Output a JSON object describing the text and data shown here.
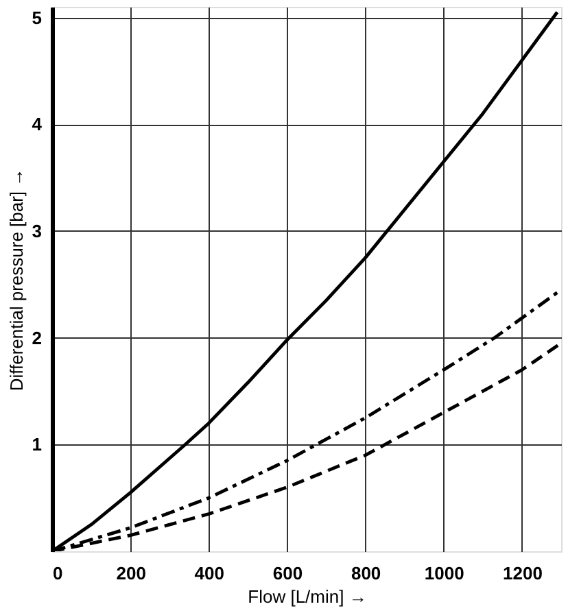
{
  "chart_data": {
    "type": "line",
    "xlabel": "Flow [L/min] →",
    "ylabel": "Differential pressure [bar] →",
    "xlim": [
      0,
      1300
    ],
    "ylim": [
      0,
      5.1
    ],
    "xticks": [
      0,
      200,
      400,
      600,
      800,
      1000,
      1200
    ],
    "yticks": [
      1,
      2,
      3,
      4,
      5
    ],
    "grid": true,
    "marker": "none",
    "series": [
      {
        "color": "#000000",
        "line_style": "solid",
        "x": [
          0,
          100,
          200,
          340,
          400,
          500,
          600,
          700,
          800,
          900,
          1000,
          1100,
          1200,
          1290
        ],
        "values": [
          0,
          0.25,
          0.55,
          1.0,
          1.2,
          1.58,
          1.98,
          2.35,
          2.75,
          3.2,
          3.65,
          4.1,
          4.6,
          5.05
        ]
      },
      {
        "color": "#000000",
        "line_style": "dashdot",
        "x": [
          0,
          200,
          400,
          600,
          800,
          1000,
          1130,
          1300
        ],
        "values": [
          0,
          0.22,
          0.5,
          0.85,
          1.25,
          1.7,
          2.0,
          2.45
        ]
      },
      {
        "color": "#000000",
        "line_style": "dashed",
        "x": [
          0,
          200,
          400,
          600,
          800,
          1000,
          1200,
          1300
        ],
        "values": [
          0,
          0.15,
          0.35,
          0.6,
          0.9,
          1.3,
          1.7,
          1.95
        ]
      }
    ]
  }
}
